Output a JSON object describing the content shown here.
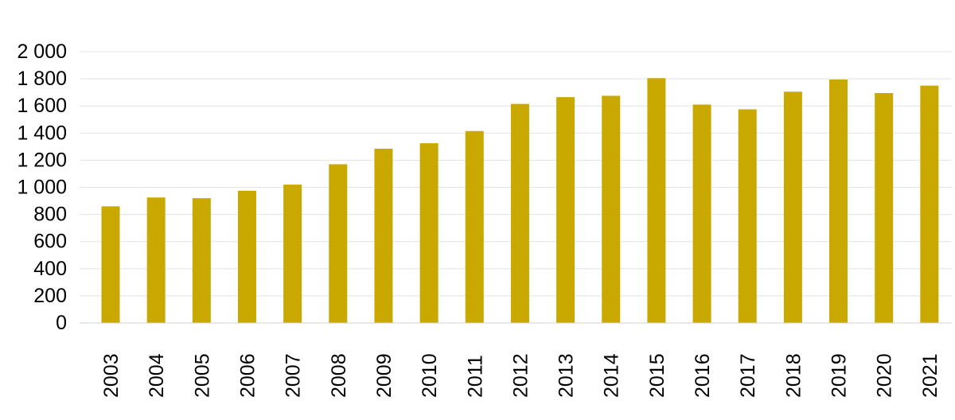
{
  "chart_data": {
    "type": "bar",
    "title": "",
    "xlabel": "",
    "ylabel": "",
    "categories": [
      "2003",
      "2004",
      "2005",
      "2006",
      "2007",
      "2008",
      "2009",
      "2010",
      "2011",
      "2012",
      "2013",
      "2014",
      "2015",
      "2016",
      "2017",
      "2018",
      "2019",
      "2020",
      "2021"
    ],
    "values": [
      860,
      925,
      920,
      975,
      1020,
      1170,
      1285,
      1325,
      1415,
      1615,
      1665,
      1675,
      1805,
      1610,
      1575,
      1705,
      1795,
      1695,
      1750
    ],
    "ylim": [
      0,
      2000
    ],
    "yticks": [
      0,
      200,
      400,
      600,
      800,
      1000,
      1200,
      1400,
      1600,
      1800,
      2000
    ],
    "ytick_labels": [
      "0",
      "200",
      "400",
      "600",
      "800",
      "1 000",
      "1 200",
      "1 400",
      "1 600",
      "1 800",
      "2 000"
    ],
    "grid": true,
    "legend": "none",
    "bar_color": "#c9a800"
  }
}
